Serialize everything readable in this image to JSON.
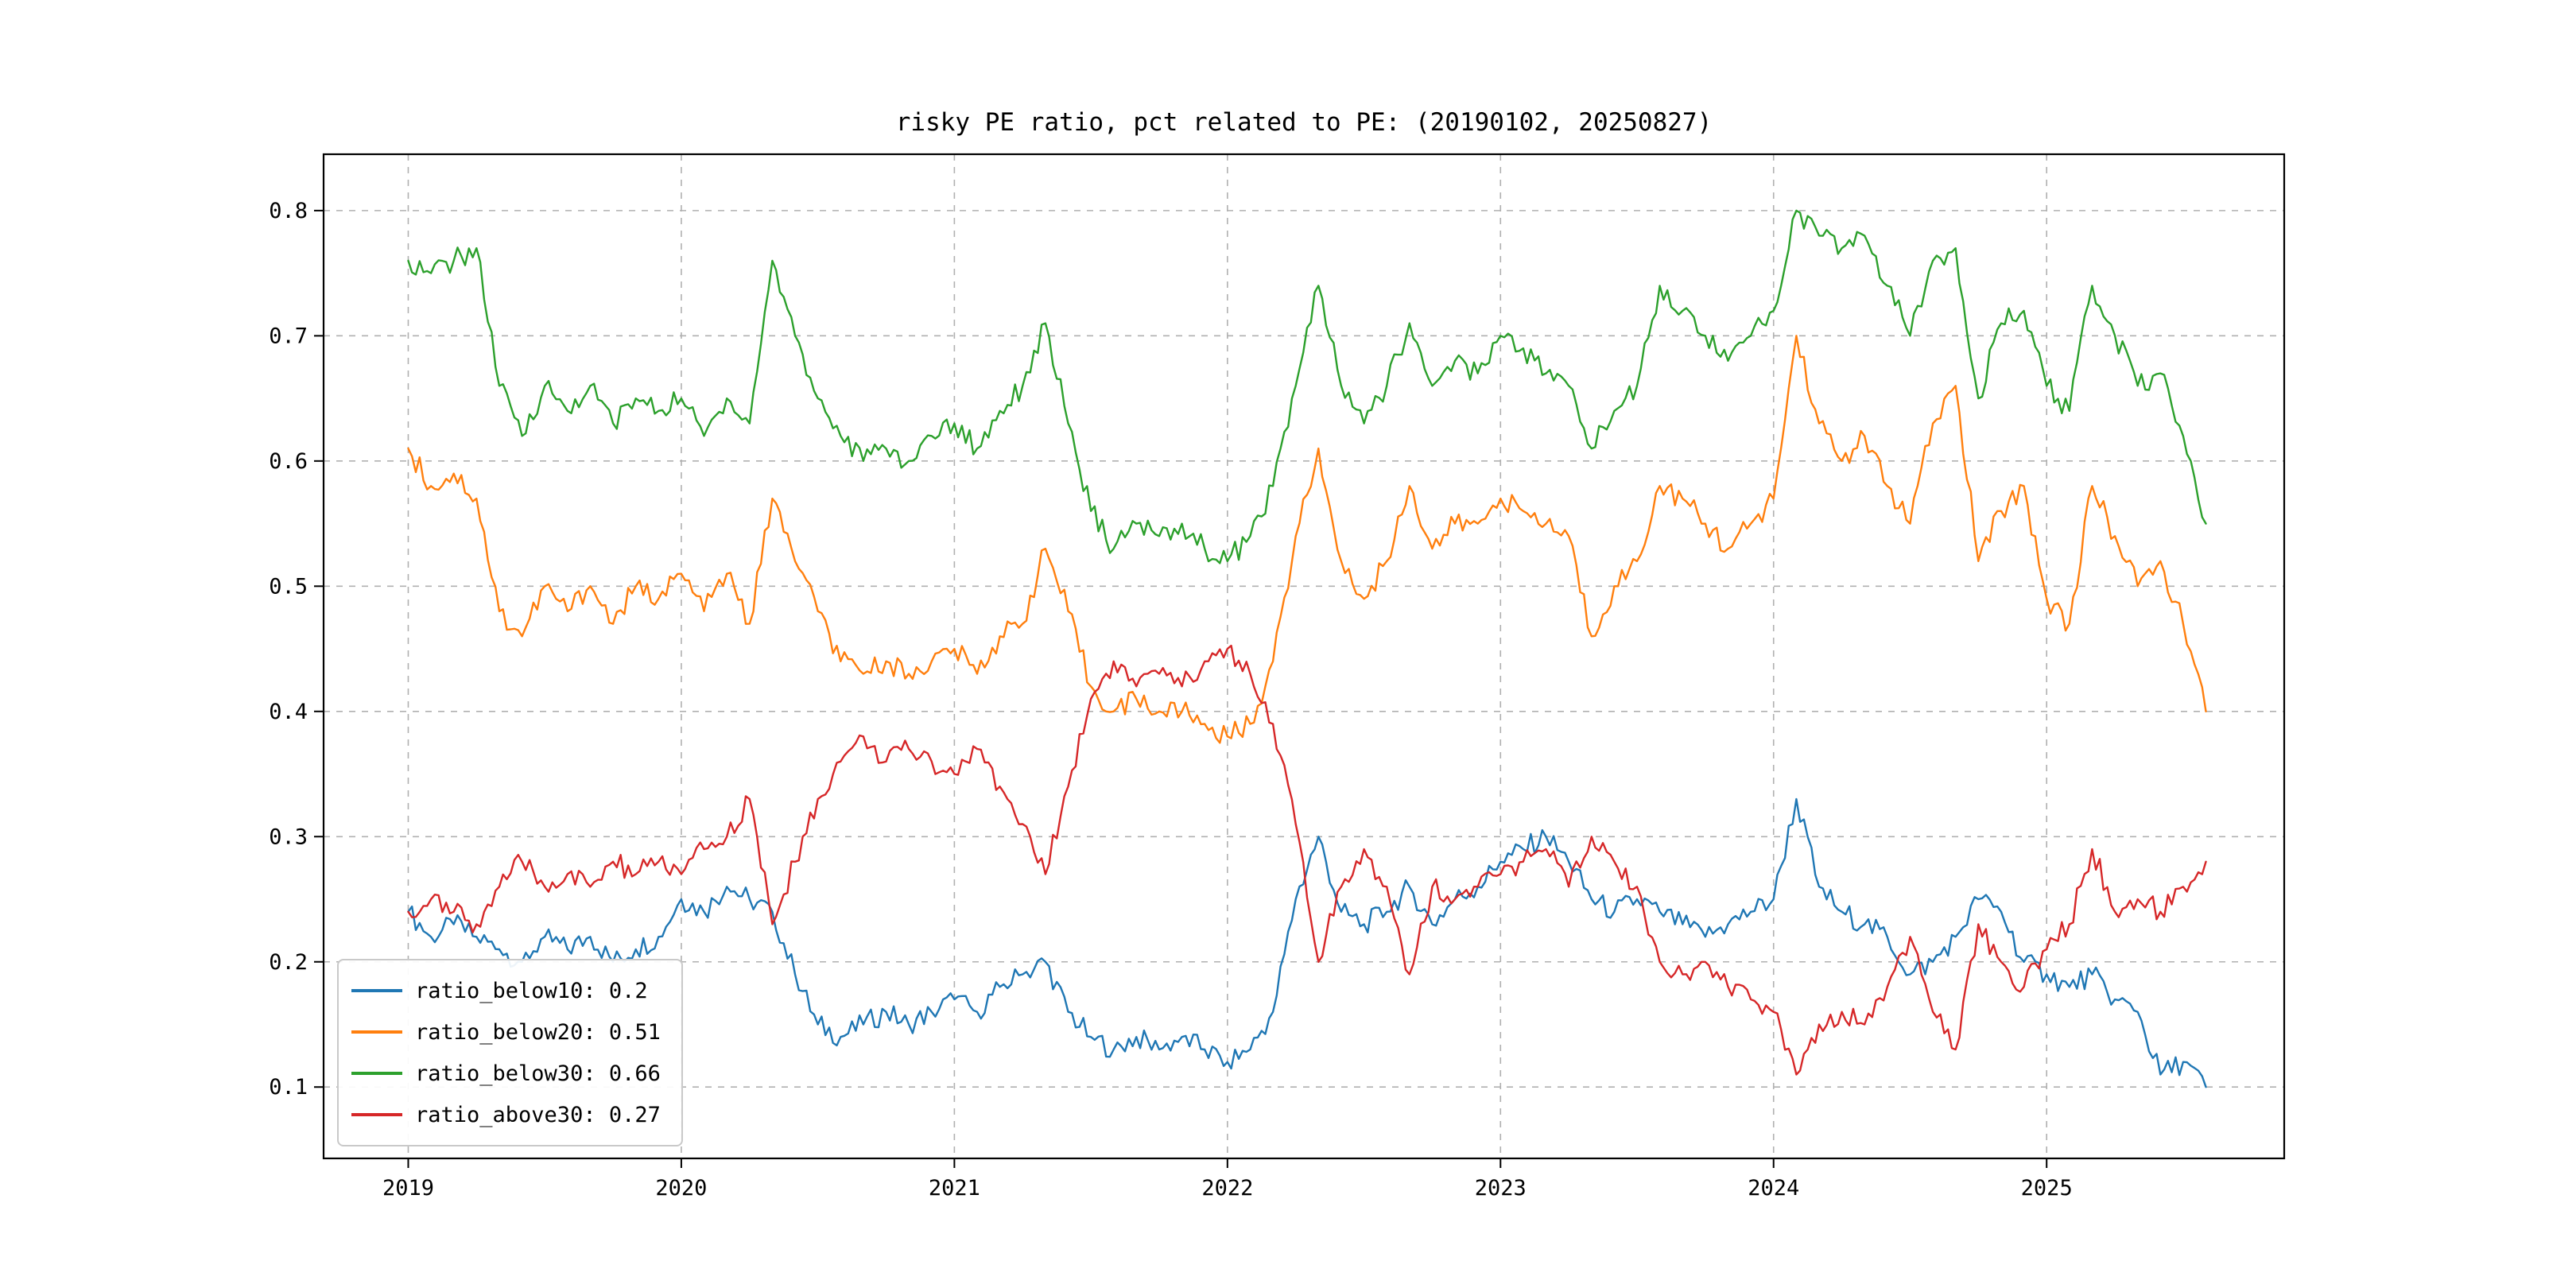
{
  "title": "risky PE ratio, pct related to PE: (20190102, 20250827)",
  "chart_data": {
    "type": "line",
    "title": "risky PE ratio, pct related to PE: (20190102, 20250827)",
    "xlabel": "",
    "ylabel": "",
    "date_range": [
      "20190102",
      "20250827"
    ],
    "x_ticks": [
      2019,
      2020,
      2021,
      2022,
      2023,
      2024,
      2025
    ],
    "y_ticks": [
      0.1,
      0.2,
      0.3,
      0.4,
      0.5,
      0.6,
      0.7,
      0.8
    ],
    "xlim": [
      2018.69,
      2025.87
    ],
    "ylim": [
      0.043,
      0.845
    ],
    "grid": "dashed",
    "legend_position": "lower left",
    "sampling": "monthly estimates, decimal years, x = x_start + i * x_step",
    "x_start": 2019.0,
    "x_step": 0.0833333,
    "series": [
      {
        "name": "ratio_below10",
        "legend_label": "ratio_below10: 0.2",
        "legend_value": 0.2,
        "color": "#1f77b4",
        "values": [
          0.24,
          0.22,
          0.23,
          0.22,
          0.21,
          0.2,
          0.22,
          0.21,
          0.22,
          0.2,
          0.21,
          0.22,
          0.25,
          0.24,
          0.26,
          0.25,
          0.24,
          0.19,
          0.15,
          0.14,
          0.15,
          0.16,
          0.15,
          0.16,
          0.17,
          0.16,
          0.18,
          0.19,
          0.2,
          0.16,
          0.14,
          0.13,
          0.14,
          0.13,
          0.14,
          0.13,
          0.12,
          0.13,
          0.16,
          0.25,
          0.3,
          0.24,
          0.23,
          0.24,
          0.26,
          0.23,
          0.25,
          0.26,
          0.28,
          0.29,
          0.3,
          0.28,
          0.25,
          0.24,
          0.25,
          0.24,
          0.23,
          0.22,
          0.23,
          0.24,
          0.25,
          0.33,
          0.26,
          0.24,
          0.23,
          0.22,
          0.19,
          0.2,
          0.22,
          0.25,
          0.24,
          0.2,
          0.19,
          0.18,
          0.19,
          0.17,
          0.16,
          0.11,
          0.12,
          0.1
        ]
      },
      {
        "name": "ratio_below20",
        "legend_label": "ratio_below20: 0.51",
        "legend_value": 0.51,
        "color": "#ff7f0e",
        "values": [
          0.61,
          0.58,
          0.59,
          0.57,
          0.48,
          0.46,
          0.5,
          0.48,
          0.5,
          0.47,
          0.5,
          0.49,
          0.51,
          0.48,
          0.51,
          0.47,
          0.57,
          0.52,
          0.48,
          0.44,
          0.43,
          0.44,
          0.43,
          0.44,
          0.45,
          0.43,
          0.46,
          0.47,
          0.53,
          0.48,
          0.42,
          0.4,
          0.41,
          0.4,
          0.4,
          0.39,
          0.38,
          0.39,
          0.44,
          0.54,
          0.61,
          0.52,
          0.49,
          0.52,
          0.58,
          0.53,
          0.55,
          0.55,
          0.57,
          0.56,
          0.55,
          0.54,
          0.46,
          0.5,
          0.52,
          0.58,
          0.57,
          0.55,
          0.53,
          0.55,
          0.57,
          0.7,
          0.63,
          0.6,
          0.62,
          0.58,
          0.55,
          0.63,
          0.66,
          0.52,
          0.56,
          0.58,
          0.49,
          0.47,
          0.58,
          0.54,
          0.5,
          0.52,
          0.47,
          0.4
        ]
      },
      {
        "name": "ratio_below30",
        "legend_label": "ratio_below30: 0.66",
        "legend_value": 0.66,
        "color": "#2ca02c",
        "values": [
          0.76,
          0.75,
          0.76,
          0.77,
          0.66,
          0.62,
          0.66,
          0.64,
          0.66,
          0.63,
          0.65,
          0.64,
          0.65,
          0.62,
          0.65,
          0.63,
          0.76,
          0.7,
          0.65,
          0.62,
          0.6,
          0.61,
          0.6,
          0.62,
          0.63,
          0.61,
          0.64,
          0.66,
          0.71,
          0.63,
          0.56,
          0.53,
          0.55,
          0.54,
          0.55,
          0.53,
          0.52,
          0.54,
          0.58,
          0.66,
          0.74,
          0.66,
          0.63,
          0.66,
          0.71,
          0.66,
          0.68,
          0.67,
          0.7,
          0.69,
          0.67,
          0.66,
          0.61,
          0.64,
          0.66,
          0.74,
          0.72,
          0.7,
          0.68,
          0.7,
          0.72,
          0.8,
          0.78,
          0.77,
          0.78,
          0.74,
          0.7,
          0.76,
          0.77,
          0.65,
          0.71,
          0.72,
          0.66,
          0.64,
          0.74,
          0.7,
          0.66,
          0.67,
          0.62,
          0.55
        ]
      },
      {
        "name": "ratio_above30",
        "legend_label": "ratio_above30: 0.27",
        "legend_value": 0.27,
        "color": "#d62728",
        "values": [
          0.24,
          0.25,
          0.24,
          0.23,
          0.26,
          0.28,
          0.26,
          0.27,
          0.26,
          0.28,
          0.27,
          0.28,
          0.27,
          0.29,
          0.3,
          0.33,
          0.23,
          0.28,
          0.33,
          0.36,
          0.38,
          0.36,
          0.37,
          0.36,
          0.35,
          0.37,
          0.34,
          0.31,
          0.27,
          0.34,
          0.41,
          0.44,
          0.42,
          0.43,
          0.42,
          0.44,
          0.45,
          0.43,
          0.39,
          0.31,
          0.2,
          0.26,
          0.29,
          0.26,
          0.19,
          0.26,
          0.25,
          0.26,
          0.27,
          0.28,
          0.29,
          0.26,
          0.3,
          0.28,
          0.26,
          0.2,
          0.19,
          0.2,
          0.18,
          0.17,
          0.16,
          0.11,
          0.15,
          0.16,
          0.15,
          0.18,
          0.22,
          0.16,
          0.13,
          0.23,
          0.2,
          0.18,
          0.21,
          0.23,
          0.29,
          0.24,
          0.25,
          0.24,
          0.26,
          0.28
        ]
      }
    ]
  }
}
